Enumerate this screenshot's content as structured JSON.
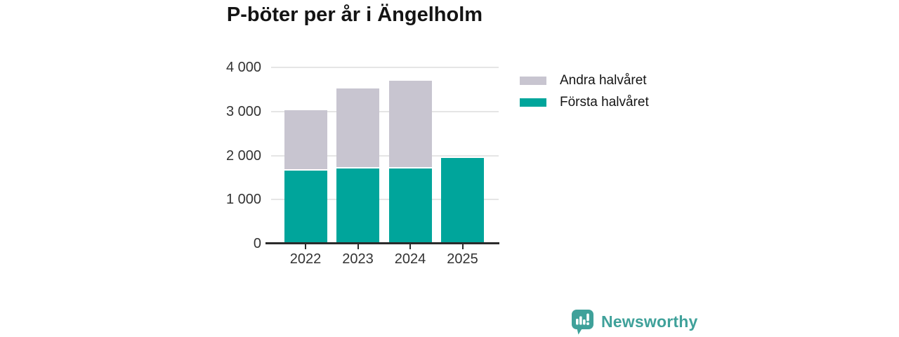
{
  "chart_data": {
    "type": "bar",
    "stacked": true,
    "title": "P-böter per år i Ängelholm",
    "categories": [
      "2022",
      "2023",
      "2024",
      "2025"
    ],
    "series": [
      {
        "name": "Första halvåret",
        "color": "#00a59b",
        "values": [
          1650,
          1700,
          1710,
          1950
        ]
      },
      {
        "name": "Andra halvåret",
        "color": "#c8c5d0",
        "values": [
          1350,
          1790,
          1950,
          0
        ]
      }
    ],
    "totals": [
      3000,
      3490,
      3660,
      1950
    ],
    "xlabel": "",
    "ylabel": "",
    "ylim": [
      0,
      4000
    ],
    "yticks": [
      0,
      1000,
      2000,
      3000,
      4000
    ],
    "ytick_labels": [
      "0",
      "1 000",
      "2 000",
      "3 000",
      "4 000"
    ],
    "grid": true,
    "legend_position": "right",
    "legend_order": [
      "Andra halvåret",
      "Första halvåret"
    ]
  },
  "colors": {
    "first_half": "#00a59b",
    "second_half": "#c8c5d0",
    "gridline": "#e5e5e5",
    "axis": "#2b2b2b",
    "tick_text": "#333333",
    "title_text": "#141414",
    "brand": "#3fa19a"
  },
  "branding": {
    "name": "Newsworthy"
  }
}
